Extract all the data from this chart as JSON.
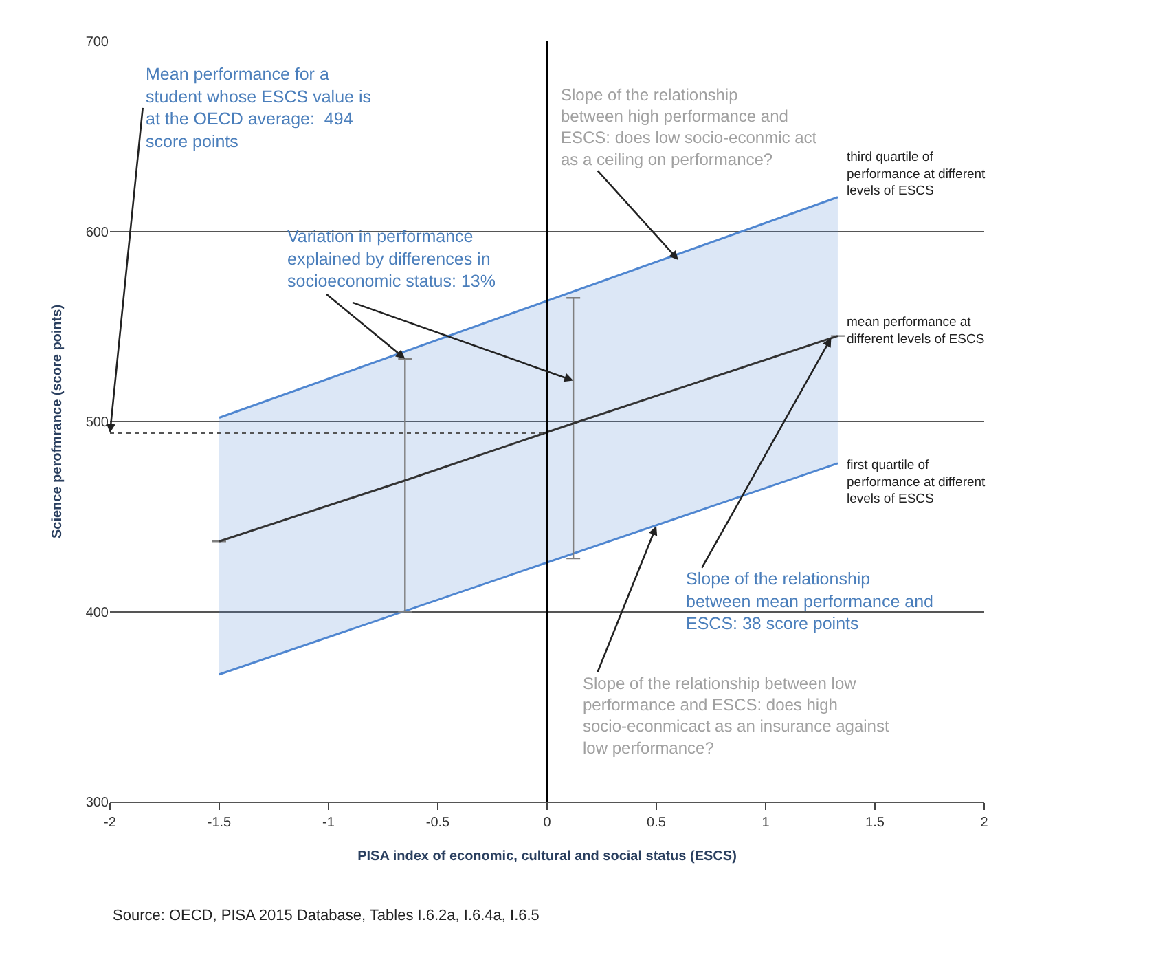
{
  "chart_data": {
    "type": "line",
    "xlabel": "PISA index of economic, cultural and social status (ESCS)",
    "ylabel": "Science perofmrance (score points)",
    "xlim": [
      -2,
      2
    ],
    "xticks": [
      -2,
      -1.5,
      -1,
      -0.5,
      0,
      0.5,
      1,
      1.5,
      2
    ],
    "ylim": [
      300,
      700
    ],
    "yticks": [
      300,
      400,
      500,
      600,
      700
    ],
    "grid": "y",
    "marker": "none",
    "line_style": "solid",
    "series": [
      {
        "color": "#4f86d0",
        "x": [
          -1.5,
          1.33
        ],
        "values": [
          367,
          478
        ]
      },
      {
        "type": "area",
        "color": "#4f86d0",
        "x": [
          -1.5,
          1.33
        ],
        "values": [
          502,
          618
        ]
      },
      {
        "color": "#333333",
        "x": [
          -1.5,
          -0.65,
          0.12,
          1.33
        ],
        "values": [
          437,
          469,
          499,
          545
        ],
        "errors": [
          null,
          [
            400,
            533
          ],
          [
            428,
            565
          ],
          null
        ]
      }
    ],
    "ref_lines": [
      {
        "axis": "x",
        "value": 0,
        "label": null,
        "color": "#000000",
        "line_style": "solid"
      },
      {
        "axis": "y",
        "value": 494,
        "label": null,
        "color": "#555555",
        "line_style": "dotted"
      }
    ],
    "annotations": [
      {
        "text": "Mean performance for a student whose ESCS value is at the OECD average:  494 score points",
        "x": -2,
        "y": 494
      },
      {
        "text": "Slope of the relationship between high performance and ESCS: does low socio-econmic act as a ceiling on performance?",
        "x": 0.6,
        "y": 585
      },
      {
        "text": "Variation in performance explained by differences in socioeconomic status: 13%",
        "x": -0.65,
        "y": 533
      },
      "third quartile of performance at different levels of ESCS",
      "mean performance at different levels of ESCS",
      "first quartile of performance at different levels of ESCS",
      {
        "text": "Slope of the relationship between mean performance and ESCS: 38 score points",
        "x": 1.3,
        "y": 544
      },
      {
        "text": "Slope of the relationship between low performance and ESCS: does high socio-econmicact as an insurance against low performance?",
        "x": 0.5,
        "y": 445
      },
      "Source: OECD, PISA 2015 Database, Tables I.6.2a, I.6.4a, I.6.5"
    ]
  }
}
